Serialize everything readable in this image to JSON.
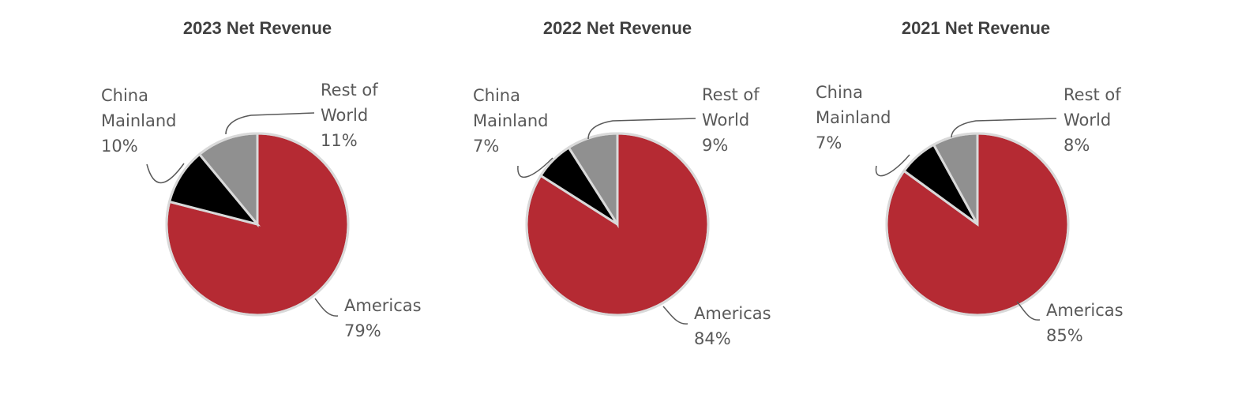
{
  "chart_data": [
    {
      "type": "pie",
      "title": "2023 Net Revenue",
      "slices": [
        {
          "name": "Americas",
          "value": 79,
          "label": "79%",
          "color": "#b52a33"
        },
        {
          "name": "China Mainland",
          "value": 10,
          "label": "10%",
          "color": "#000000"
        },
        {
          "name": "Rest of World",
          "value": 11,
          "label": "11%",
          "color": "#909090"
        }
      ]
    },
    {
      "type": "pie",
      "title": "2022 Net Revenue",
      "slices": [
        {
          "name": "Americas",
          "value": 84,
          "label": "84%",
          "color": "#b52a33"
        },
        {
          "name": "China Mainland",
          "value": 7,
          "label": "7%",
          "color": "#000000"
        },
        {
          "name": "Rest of World",
          "value": 9,
          "label": "9%",
          "color": "#909090"
        }
      ]
    },
    {
      "type": "pie",
      "title": "2021 Net Revenue",
      "slices": [
        {
          "name": "Americas",
          "value": 85,
          "label": "85%",
          "color": "#b52a33"
        },
        {
          "name": "China Mainland",
          "value": 7,
          "label": "7%",
          "color": "#000000"
        },
        {
          "name": "Rest of World",
          "value": 8,
          "label": "8%",
          "color": "#909090"
        }
      ]
    }
  ]
}
